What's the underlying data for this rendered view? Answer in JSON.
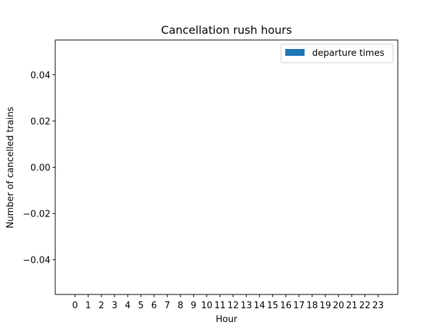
{
  "chart_data": {
    "type": "bar",
    "title": "Cancellation rush hours",
    "xlabel": "Hour",
    "ylabel": "Number of cancelled trains",
    "categories": [
      "0",
      "1",
      "2",
      "3",
      "4",
      "5",
      "6",
      "7",
      "8",
      "9",
      "10",
      "11",
      "12",
      "13",
      "14",
      "15",
      "16",
      "17",
      "18",
      "19",
      "20",
      "21",
      "22",
      "23"
    ],
    "series": [
      {
        "name": "departure times",
        "values": [
          0,
          0,
          0,
          0,
          0,
          0,
          0,
          0,
          0,
          0,
          0,
          0,
          0,
          0,
          0,
          0,
          0,
          0,
          0,
          0,
          0,
          0,
          0,
          0
        ],
        "color": "#1f77b4"
      }
    ],
    "ylim": [
      -0.055,
      0.055
    ],
    "yticks": [
      -0.04,
      -0.02,
      0.0,
      0.02,
      0.04
    ],
    "ytick_labels": [
      "−0.04",
      "−0.02",
      "0.00",
      "0.02",
      "0.04"
    ],
    "grid": false,
    "legend_position": "top-right"
  }
}
